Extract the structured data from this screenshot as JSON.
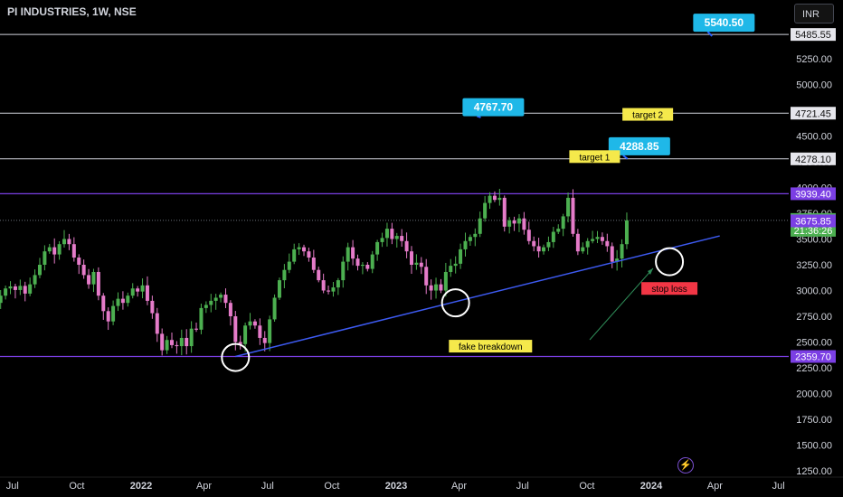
{
  "header": {
    "title": "PI INDUSTRIES, 1W, NSE",
    "currency": "INR"
  },
  "chart_data": {
    "type": "candlestick",
    "title": "PI INDUSTRIES, 1W, NSE",
    "currency": "INR",
    "yaxis": {
      "ylim": [
        1200,
        5700
      ],
      "ticks": [
        "1250.00",
        "1500.00",
        "1750.00",
        "2000.00",
        "2250.00",
        "2500.00",
        "2750.00",
        "3000.00",
        "3250.00",
        "3500.00",
        "3750.00",
        "4000.00",
        "4250.00",
        "4500.00",
        "4750.00",
        "5000.00",
        "5250.00"
      ]
    },
    "xaxis": {
      "range": [
        "2021-07-01",
        "2024-07-10"
      ],
      "ticks": [
        {
          "label": "Jul",
          "date": "2021-07-01"
        },
        {
          "label": "Oct",
          "date": "2021-10-01"
        },
        {
          "label": "2022",
          "date": "2022-01-01"
        },
        {
          "label": "Apr",
          "date": "2022-04-01"
        },
        {
          "label": "Jul",
          "date": "2022-07-01"
        },
        {
          "label": "Oct",
          "date": "2022-10-01"
        },
        {
          "label": "2023",
          "date": "2023-01-01"
        },
        {
          "label": "Apr",
          "date": "2023-04-01"
        },
        {
          "label": "Jul",
          "date": "2023-07-01"
        },
        {
          "label": "Oct",
          "date": "2023-10-01"
        },
        {
          "label": "2024",
          "date": "2024-01-01"
        },
        {
          "label": "Apr",
          "date": "2024-04-01"
        },
        {
          "label": "Jul",
          "date": "2024-07-01"
        }
      ]
    },
    "colors": {
      "up": "#4caf50",
      "down": "#e57bc9",
      "trendline": "#3d5af1",
      "level": "#d1d4dc",
      "purple": "#7b3fe4",
      "callout": "#1fb8e8"
    },
    "candles_close": [
      2950,
      3020,
      3040,
      3005,
      3045,
      2970,
      3060,
      3150,
      3250,
      3380,
      3420,
      3350,
      3450,
      3500,
      3450,
      3320,
      3250,
      3150,
      3060,
      3180,
      2950,
      2800,
      2700,
      2850,
      2920,
      2880,
      2950,
      3020,
      2990,
      3050,
      2900,
      2780,
      2580,
      2420,
      2520,
      2470,
      2460,
      2540,
      2460,
      2630,
      2620,
      2830,
      2860,
      2900,
      2930,
      2960,
      2880,
      2750,
      2500,
      2480,
      2660,
      2700,
      2660,
      2540,
      2490,
      2720,
      2930,
      3100,
      3200,
      3280,
      3400,
      3420,
      3380,
      3320,
      3200,
      3100,
      3000,
      2990,
      3030,
      3100,
      3280,
      3420,
      3310,
      3240,
      3250,
      3210,
      3350,
      3470,
      3510,
      3600,
      3500,
      3530,
      3480,
      3380,
      3250,
      3270,
      3230,
      3050,
      3000,
      3060,
      3000,
      3180,
      3240,
      3260,
      3400,
      3480,
      3520,
      3550,
      3700,
      3850,
      3920,
      3880,
      3900,
      3620,
      3680,
      3650,
      3700,
      3590,
      3480,
      3430,
      3380,
      3420,
      3470,
      3570,
      3600,
      3720,
      3900,
      3550,
      3380,
      3420,
      3480,
      3500,
      3520,
      3480,
      3430,
      3280,
      3310,
      3450,
      3681
    ],
    "levels": [
      {
        "value": 5485.55,
        "label": "5485.55",
        "style": "line"
      },
      {
        "value": 4721.45,
        "label": "4721.45",
        "style": "line"
      },
      {
        "value": 4278.1,
        "label": "4278.10",
        "style": "line"
      },
      {
        "value": 3939.4,
        "label": "3939.40",
        "style": "purple"
      },
      {
        "value": 2359.7,
        "label": "2359.70",
        "style": "purple"
      }
    ],
    "current_price": {
      "value": 3680.85,
      "label": "3680.85",
      "countdown": "21:36:26"
    },
    "trendline_price_label": {
      "value": 3675.85,
      "label": "3675.85"
    },
    "trendline": {
      "from": {
        "date": "2022-05-16",
        "price": 2359.7
      },
      "to": {
        "date": "2024-04-08",
        "price": 3530
      }
    },
    "callouts": [
      {
        "label": "5540.50",
        "date": "2024-04-14",
        "price": 5600,
        "arrow_to": {
          "date": "2024-03-28",
          "price": 5470
        }
      },
      {
        "label": "4767.70",
        "date": "2023-05-20",
        "price": 4780,
        "arrow_to": {
          "date": "2023-05-02",
          "price": 4680
        }
      },
      {
        "label": "4288.85",
        "date": "2023-12-15",
        "price": 4400,
        "arrow_to": {
          "date": "2023-11-28",
          "price": 4278
        }
      }
    ],
    "annotations": [
      {
        "text": "target 2",
        "date": "2023-12-27",
        "price": 4710,
        "style": "yellow"
      },
      {
        "text": "target 1",
        "date": "2023-10-12",
        "price": 4300,
        "style": "yellow"
      },
      {
        "text": "stop loss",
        "date": "2024-01-27",
        "price": 3020,
        "style": "red"
      },
      {
        "text": "fake breakdown",
        "date": "2023-05-16",
        "price": 2460,
        "style": "yellow"
      }
    ],
    "markers": [
      {
        "date": "2022-05-16",
        "price": 2350
      },
      {
        "date": "2023-03-27",
        "price": 2880
      },
      {
        "date": "2024-01-27",
        "price": 3280
      }
    ]
  }
}
